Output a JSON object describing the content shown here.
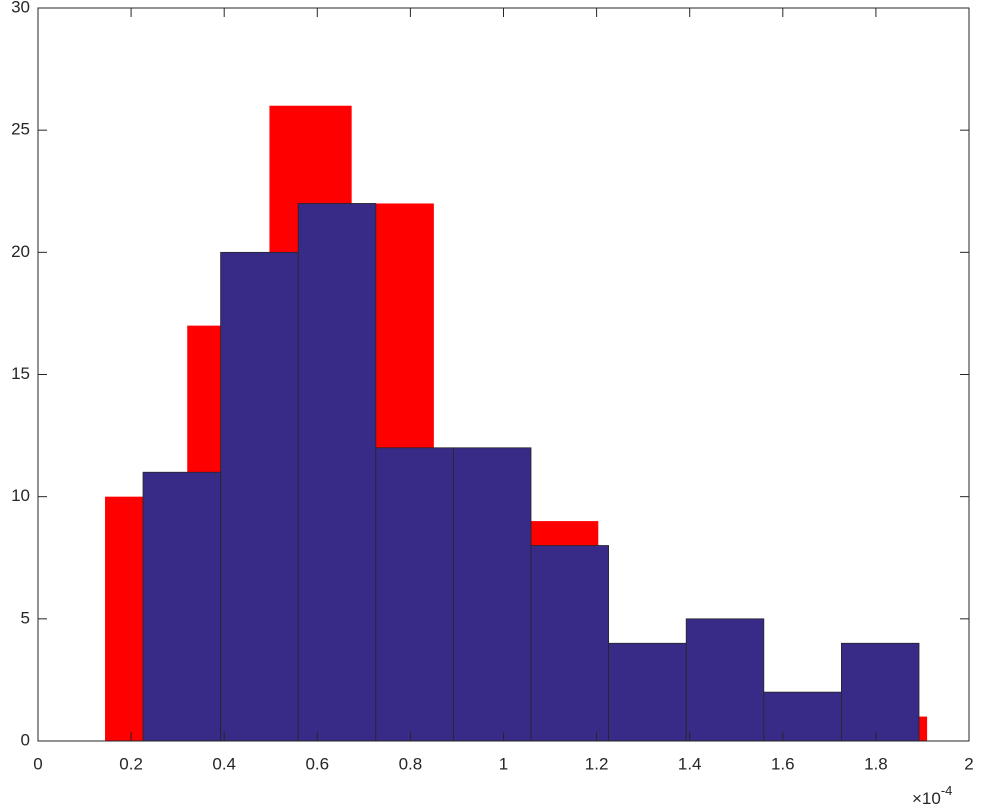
{
  "chart_data": {
    "type": "histogram",
    "series": [
      {
        "color": "#ff0000",
        "bins": [
          0.144,
          0.3206,
          0.4972,
          0.6738,
          0.8504,
          1.027,
          1.2036,
          1.3802,
          1.5568,
          1.7334,
          1.91
        ],
        "values": [
          10,
          17,
          26,
          22,
          9,
          9,
          3,
          3,
          0,
          1
        ]
      },
      {
        "color": "#372b87",
        "bins": [
          0.2256,
          0.3923,
          0.559,
          0.7257,
          0.8924,
          1.0591,
          1.2258,
          1.3925,
          1.5592,
          1.7259,
          1.8926
        ],
        "values": [
          11,
          20,
          22,
          12,
          12,
          8,
          4,
          5,
          2,
          4
        ]
      }
    ],
    "xlim": [
      0,
      2
    ],
    "xticks": [
      0,
      0.2,
      0.4,
      0.6,
      0.8,
      1,
      1.2,
      1.4,
      1.6,
      1.8,
      2
    ],
    "ylim": [
      0,
      30
    ],
    "yticks": [
      0,
      5,
      10,
      15,
      20,
      25,
      30
    ],
    "x_multiplier": {
      "base": "×10",
      "exponent": "-4"
    },
    "grid": false
  }
}
